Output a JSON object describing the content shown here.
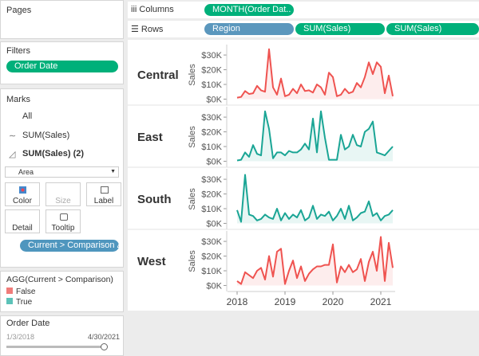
{
  "ui": {
    "pages_title": "Pages",
    "columns_label": "Columns",
    "columns_pills": [
      "MONTH(Order Dat.."
    ],
    "rows_label": "Rows",
    "rows_pills": [
      "Region",
      "SUM(Sales)",
      "SUM(Sales)"
    ],
    "filters_title": "Filters",
    "filter_pills": [
      "Order Date"
    ],
    "marks_title": "Marks",
    "marks_cards": [
      "All",
      "SUM(Sales)",
      "SUM(Sales) (2)"
    ],
    "mark_type": "Area",
    "mark_buttons": [
      "Color",
      "Size",
      "Label",
      "Detail",
      "Tooltip"
    ],
    "color_pill": "Current > Comparison Δ",
    "legend": {
      "title": "AGG(Current > Comparison)",
      "items": [
        {
          "label": "False",
          "color": "#f07c7a"
        },
        {
          "label": "True",
          "color": "#5cc2b8"
        }
      ]
    },
    "slider": {
      "title": "Order Date",
      "start": "1/3/2018",
      "end": "4/30/2021"
    }
  },
  "chart_data": {
    "type": "line",
    "y_label": "Sales",
    "x": [
      2018,
      2018.083,
      2018.167,
      2018.25,
      2018.333,
      2018.417,
      2018.5,
      2018.583,
      2018.667,
      2018.75,
      2018.833,
      2018.917,
      2019,
      2019.083,
      2019.167,
      2019.25,
      2019.333,
      2019.417,
      2019.5,
      2019.583,
      2019.667,
      2019.75,
      2019.833,
      2019.917,
      2020,
      2020.083,
      2020.167,
      2020.25,
      2020.333,
      2020.417,
      2020.5,
      2020.583,
      2020.667,
      2020.75,
      2020.833,
      2020.917,
      2021,
      2021.083,
      2021.167,
      2021.25
    ],
    "xlim": [
      2017.8,
      2021.3
    ],
    "xticks": [
      2018,
      2019,
      2020,
      2021
    ],
    "ylim": [
      -3000,
      36000
    ],
    "yticks": [
      {
        "value": 0,
        "label": "$0K"
      },
      {
        "value": 10000,
        "label": "$10K"
      },
      {
        "value": 20000,
        "label": "$20K"
      },
      {
        "value": 30000,
        "label": "$30K"
      }
    ],
    "series": [
      {
        "name": "Central",
        "color": "#ef5350",
        "values": [
          1000,
          1500,
          5500,
          3500,
          4000,
          9000,
          6000,
          5000,
          34000,
          8000,
          3000,
          14000,
          2000,
          3000,
          7000,
          4000,
          10000,
          5500,
          6000,
          4500,
          10000,
          8000,
          3000,
          18000,
          15000,
          2000,
          3000,
          7000,
          4000,
          5000,
          11000,
          8000,
          15000,
          25000,
          17000,
          25000,
          22000,
          4000,
          16000,
          2000
        ]
      },
      {
        "name": "East",
        "color": "#1aa595",
        "values": [
          500,
          1000,
          6000,
          3000,
          11000,
          5000,
          4000,
          34000,
          22000,
          2000,
          6000,
          6000,
          4000,
          7000,
          6000,
          6000,
          8000,
          12000,
          8000,
          29000,
          6000,
          34000,
          16000,
          1000,
          1000,
          1000,
          18000,
          8000,
          10000,
          18000,
          11000,
          10000,
          20000,
          22000,
          27000,
          6000,
          5000,
          4000,
          7000,
          10000
        ]
      },
      {
        "name": "South",
        "color": "#1aa595",
        "values": [
          9000,
          1000,
          33000,
          6000,
          5000,
          2000,
          3000,
          6000,
          4000,
          3000,
          10000,
          2000,
          7000,
          3000,
          6000,
          4000,
          9000,
          2000,
          4000,
          12000,
          3000,
          6000,
          5000,
          8000,
          2000,
          5000,
          10000,
          3000,
          12000,
          2000,
          4000,
          7000,
          8000,
          15000,
          5000,
          7000,
          2000,
          5000,
          6000,
          9000
        ]
      },
      {
        "name": "West",
        "color": "#ef5350",
        "values": [
          3000,
          1000,
          9000,
          7000,
          5000,
          10000,
          12000,
          4000,
          20000,
          6000,
          23000,
          25000,
          1000,
          10000,
          17000,
          5000,
          13000,
          3000,
          8000,
          11000,
          13000,
          13000,
          14000,
          14000,
          28000,
          2000,
          13000,
          9000,
          14000,
          9000,
          11000,
          18000,
          3000,
          16000,
          23000,
          10000,
          33000,
          3000,
          29000,
          12000
        ]
      }
    ]
  }
}
